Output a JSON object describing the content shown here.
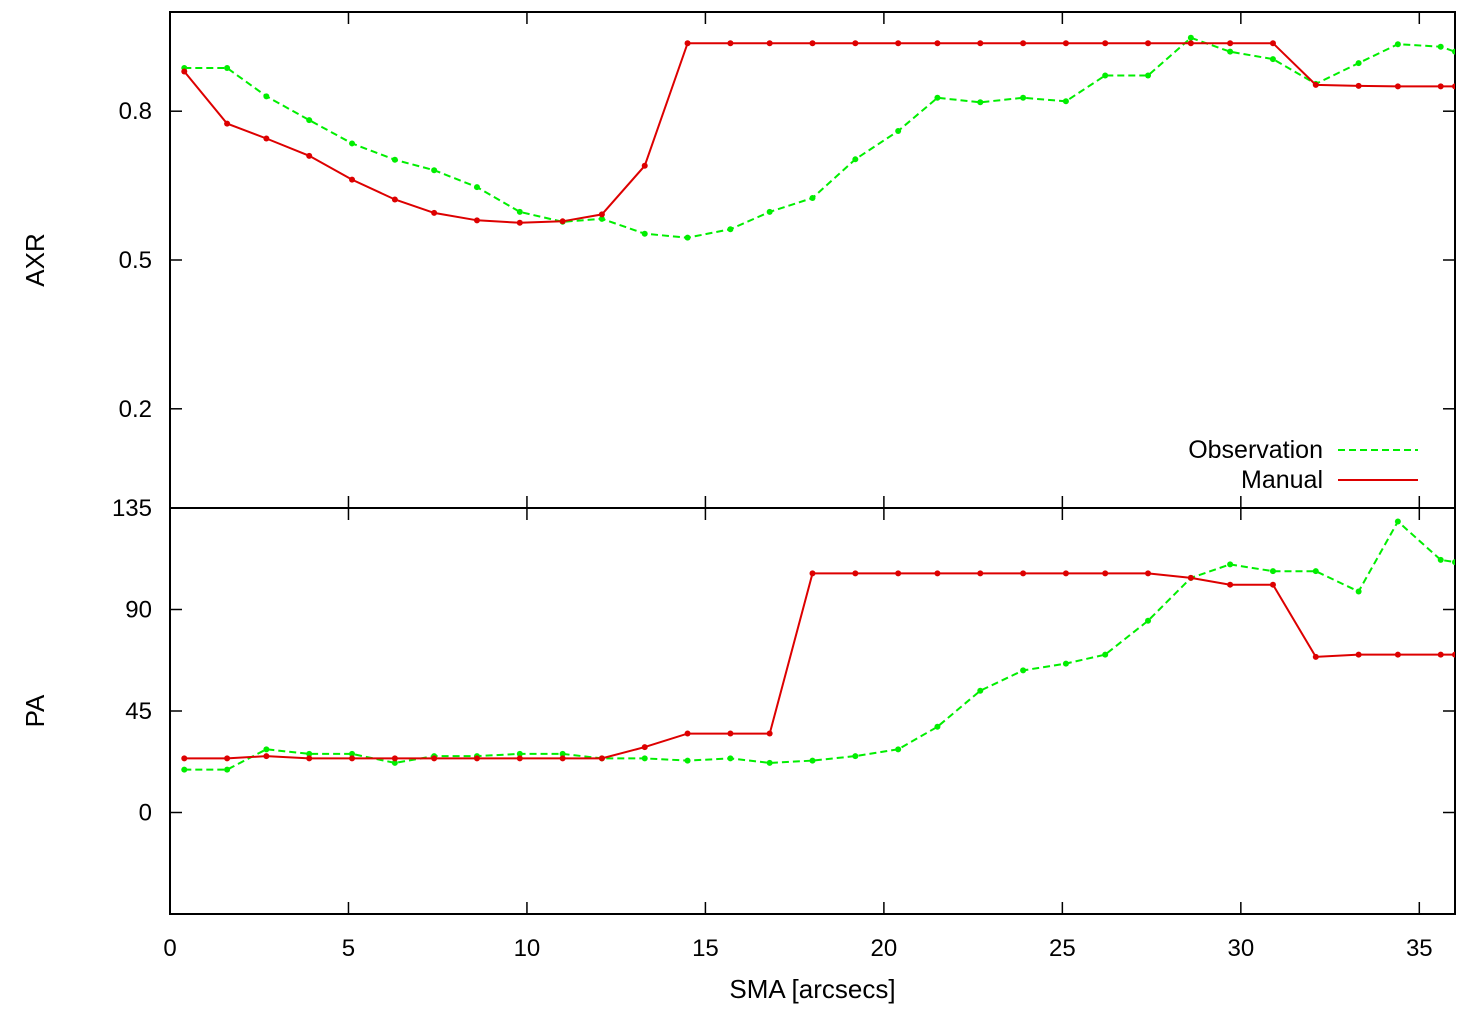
{
  "colors": {
    "observation": "#00ee00",
    "manual": "#dd0000",
    "axis": "#000000"
  },
  "chart_data": [
    {
      "type": "line",
      "ylabel": "AXR",
      "xlabel": "",
      "xlim": [
        0,
        36
      ],
      "ylim": [
        0.0,
        1.0
      ],
      "yticks": [
        0.2,
        0.5,
        0.8
      ],
      "ytick_labels": [
        "0.2",
        "0.5",
        "0.8"
      ],
      "legend_placement": "bottom-right",
      "series": [
        {
          "name": "Observation",
          "style": "dashed",
          "x": [
            0.4,
            1.6,
            2.7,
            3.9,
            5.1,
            6.3,
            7.4,
            8.6,
            9.8,
            11.0,
            12.1,
            13.3,
            14.5,
            15.7,
            16.8,
            18.0,
            19.2,
            20.4,
            21.5,
            22.7,
            23.9,
            25.1,
            26.2,
            27.4,
            28.6,
            29.7,
            30.9,
            32.1,
            33.3,
            34.4,
            35.6,
            36.0
          ],
          "y": [
            0.887,
            0.887,
            0.83,
            0.782,
            0.735,
            0.702,
            0.681,
            0.647,
            0.597,
            0.577,
            0.583,
            0.553,
            0.545,
            0.562,
            0.597,
            0.625,
            0.703,
            0.76,
            0.827,
            0.818,
            0.827,
            0.82,
            0.872,
            0.872,
            0.948,
            0.92,
            0.905,
            0.855,
            0.897,
            0.935,
            0.93,
            0.92
          ]
        },
        {
          "name": "Manual",
          "style": "solid",
          "x": [
            0.4,
            1.6,
            2.7,
            3.9,
            5.1,
            6.3,
            7.4,
            8.6,
            9.8,
            11.0,
            12.1,
            13.3,
            14.5,
            15.7,
            16.8,
            18.0,
            19.2,
            20.4,
            21.5,
            22.7,
            23.9,
            25.1,
            26.2,
            27.4,
            28.6,
            29.7,
            30.9,
            32.1,
            33.3,
            34.4,
            35.6,
            36.0
          ],
          "y": [
            0.88,
            0.775,
            0.745,
            0.71,
            0.662,
            0.622,
            0.595,
            0.58,
            0.575,
            0.578,
            0.592,
            0.69,
            0.937,
            0.937,
            0.937,
            0.937,
            0.937,
            0.937,
            0.937,
            0.937,
            0.937,
            0.937,
            0.937,
            0.937,
            0.937,
            0.937,
            0.937,
            0.853,
            0.851,
            0.85,
            0.85,
            0.85
          ]
        }
      ]
    },
    {
      "type": "line",
      "ylabel": "PA",
      "xlabel": "SMA [arcsecs]",
      "xlim": [
        0,
        36
      ],
      "ylim": [
        -45,
        135
      ],
      "yticks": [
        0,
        45,
        90,
        135
      ],
      "ytick_labels": [
        "0",
        "45",
        "90",
        "135"
      ],
      "xticks": [
        0,
        5,
        10,
        15,
        20,
        25,
        30,
        35
      ],
      "xtick_labels": [
        "0",
        "5",
        "10",
        "15",
        "20",
        "25",
        "30",
        "35"
      ],
      "series": [
        {
          "name": "Observation",
          "style": "dashed",
          "x": [
            0.4,
            1.6,
            2.7,
            3.9,
            5.1,
            6.3,
            7.4,
            8.6,
            9.8,
            11.0,
            12.1,
            13.3,
            14.5,
            15.7,
            16.8,
            18.0,
            19.2,
            20.4,
            21.5,
            22.7,
            23.9,
            25.1,
            26.2,
            27.4,
            28.6,
            29.7,
            30.9,
            32.1,
            33.3,
            34.4,
            35.6,
            36.0
          ],
          "y": [
            19,
            19,
            28,
            26,
            26,
            22,
            25,
            25,
            26,
            26,
            24,
            24,
            23,
            24,
            22,
            23,
            25,
            28,
            38,
            54,
            63,
            66,
            70,
            85,
            104,
            110,
            107,
            107,
            98,
            129,
            112,
            111
          ]
        },
        {
          "name": "Manual",
          "style": "solid",
          "x": [
            0.4,
            1.6,
            2.7,
            3.9,
            5.1,
            6.3,
            7.4,
            8.6,
            9.8,
            11.0,
            12.1,
            13.3,
            14.5,
            15.7,
            16.8,
            18.0,
            19.2,
            20.4,
            21.5,
            22.7,
            23.9,
            25.1,
            26.2,
            27.4,
            28.6,
            29.7,
            30.9,
            32.1,
            33.3,
            34.4,
            35.6,
            36.0
          ],
          "y": [
            24,
            24,
            25,
            24,
            24,
            24,
            24,
            24,
            24,
            24,
            24,
            29,
            35,
            35,
            35,
            106,
            106,
            106,
            106,
            106,
            106,
            106,
            106,
            106,
            104,
            101,
            101,
            69,
            70,
            70,
            70,
            70
          ]
        }
      ]
    }
  ]
}
